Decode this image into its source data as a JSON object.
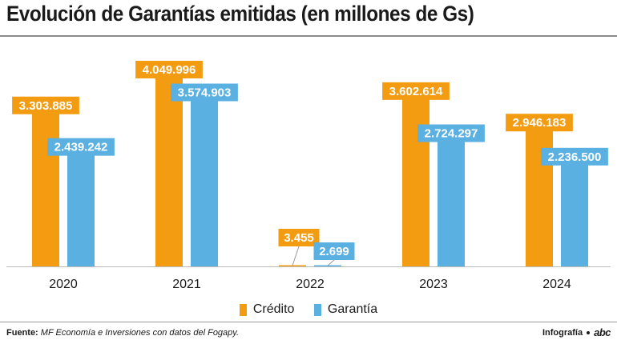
{
  "title": "Evolución de Garantías emitidas (en millones de Gs)",
  "colors": {
    "credito": "#f39c12",
    "garantia": "#5ab0e0",
    "label_text": "#ffffff",
    "axis": "#bbbbbb",
    "leader": "#999999"
  },
  "chart_data": {
    "type": "bar",
    "title": "Evolución de Garantías emitidas (en millones de Gs)",
    "xlabel": "",
    "ylabel": "",
    "categories": [
      "2020",
      "2021",
      "2022",
      "2023",
      "2024"
    ],
    "ylim": [
      0,
      4049996
    ],
    "grid": false,
    "legend_position": "bottom-center",
    "series": [
      {
        "name": "Crédito",
        "color": "#f39c12",
        "values": [
          3303885,
          4049996,
          3455,
          3602614,
          2946183
        ],
        "labels": [
          "3.303.885",
          "4.049.996",
          "3.455",
          "3.602.614",
          "2.946.183"
        ]
      },
      {
        "name": "Garantía",
        "color": "#5ab0e0",
        "values": [
          2439242,
          3574903,
          2699,
          2724297,
          2236500
        ],
        "labels": [
          "2.439.242",
          "3.574.903",
          "2.699",
          "2.724.297",
          "2.236.500"
        ]
      }
    ]
  },
  "legend": {
    "credito": "Crédito",
    "garantia": "Garantía"
  },
  "footer": {
    "source_label": "Fuente:",
    "source_text": "MF Economía e Inversiones con datos del Fogapy.",
    "credit": "Infografía",
    "brand": "abc"
  }
}
